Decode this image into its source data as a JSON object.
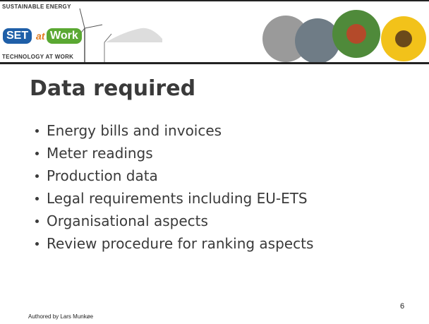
{
  "header": {
    "logo": {
      "line1": "SUSTAINABLE ENERGY",
      "set": "SET",
      "at": "at",
      "work": "Work",
      "line2": "TECHNOLOGY AT WORK"
    }
  },
  "slide": {
    "title": "Data required",
    "bullets": [
      "Energy bills and invoices",
      "Meter readings",
      "Production data",
      "Legal requirements including EU-ETS",
      "Organisational aspects",
      "Review procedure for ranking aspects"
    ],
    "page_number": "6",
    "footer": "Authored by Lars Munkøe"
  }
}
